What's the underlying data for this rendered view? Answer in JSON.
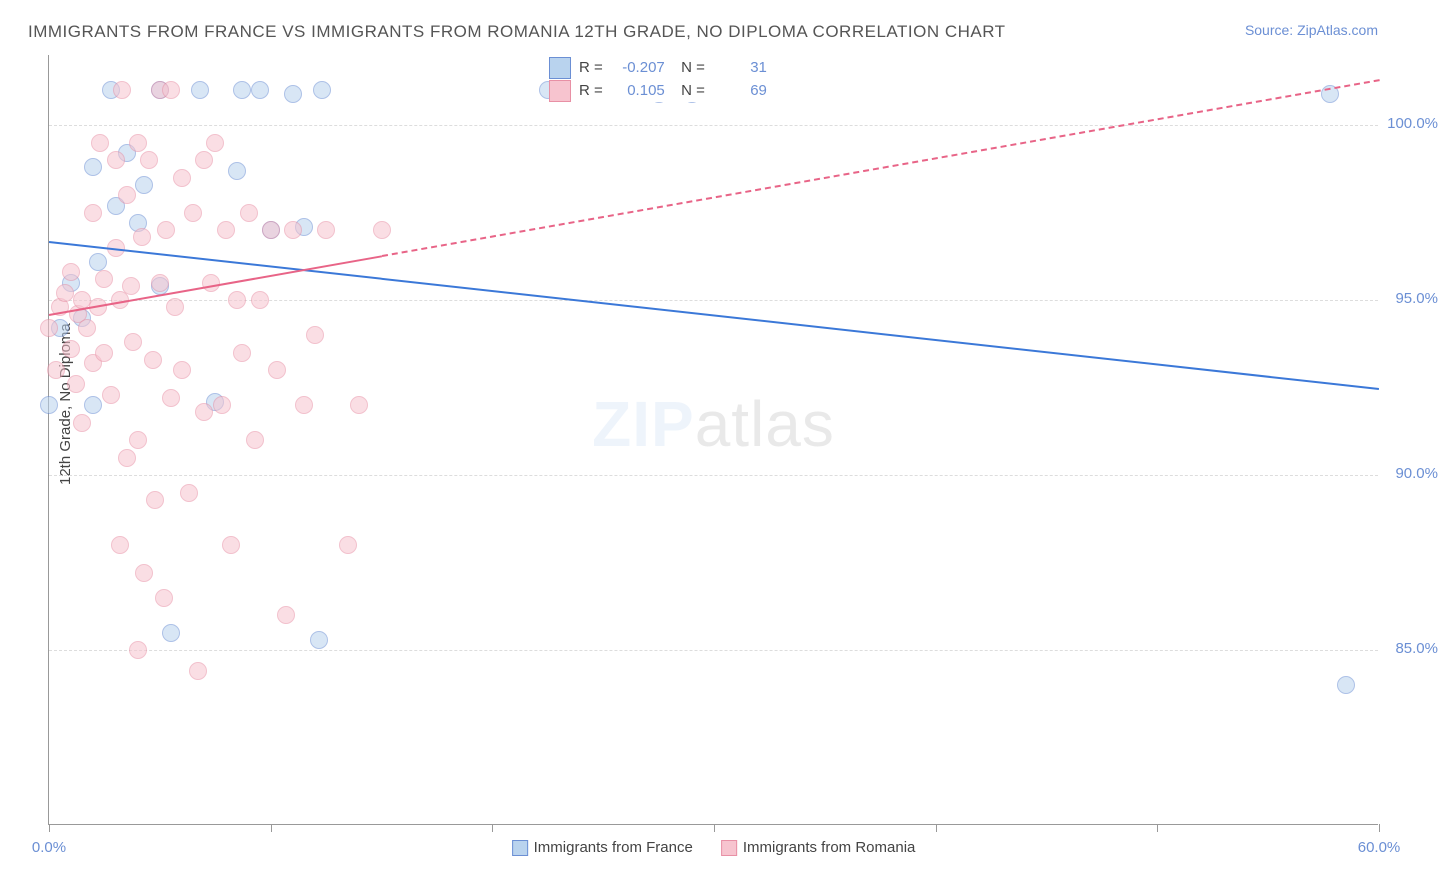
{
  "title": "IMMIGRANTS FROM FRANCE VS IMMIGRANTS FROM ROMANIA 12TH GRADE, NO DIPLOMA CORRELATION CHART",
  "source": "Source: ZipAtlas.com",
  "ylabel": "12th Grade, No Diploma",
  "watermark_bold": "ZIP",
  "watermark_light": "atlas",
  "chart": {
    "type": "scatter",
    "xlim": [
      0,
      60
    ],
    "ylim": [
      80,
      102
    ],
    "x_ticks": [
      0,
      10,
      20,
      30,
      40,
      50,
      60
    ],
    "x_tick_labels": {
      "0": "0.0%",
      "60": "60.0%"
    },
    "y_ticks": [
      85,
      90,
      95,
      100
    ],
    "y_tick_labels": {
      "85": "85.0%",
      "90": "90.0%",
      "95": "95.0%",
      "100": "100.0%"
    },
    "background_color": "#ffffff",
    "grid_color": "#dddddd",
    "series": [
      {
        "name": "Immigrants from France",
        "fill": "#b9d3ee",
        "stroke": "#6b8fd4",
        "stroke_width": 1.5,
        "fill_opacity": 0.55,
        "marker_r": 9,
        "R": "-0.207",
        "N": "31",
        "trend": {
          "x1": 0,
          "y1": 96.7,
          "x2": 60,
          "y2": 92.5,
          "color": "#3b78d8",
          "solid_until_x": 60
        },
        "points": [
          [
            0.0,
            92.0
          ],
          [
            2.8,
            101.0
          ],
          [
            2.0,
            98.8
          ],
          [
            3.0,
            97.7
          ],
          [
            3.5,
            99.2
          ],
          [
            4.0,
            97.2
          ],
          [
            4.3,
            98.3
          ],
          [
            5.0,
            95.4
          ],
          [
            5.0,
            101.0
          ],
          [
            6.8,
            101.0
          ],
          [
            8.5,
            98.7
          ],
          [
            8.7,
            101.0
          ],
          [
            9.5,
            101.0
          ],
          [
            10.0,
            97.0
          ],
          [
            11.0,
            100.9
          ],
          [
            12.3,
            101.0
          ],
          [
            11.5,
            97.1
          ],
          [
            7.5,
            92.1
          ],
          [
            12.2,
            85.3
          ],
          [
            5.5,
            85.5
          ],
          [
            22.5,
            101.0
          ],
          [
            23.5,
            101.0
          ],
          [
            27.5,
            100.9
          ],
          [
            29.0,
            100.9
          ],
          [
            57.8,
            100.9
          ],
          [
            58.5,
            84.0
          ],
          [
            0.5,
            94.2
          ],
          [
            1.0,
            95.5
          ],
          [
            1.5,
            94.5
          ],
          [
            2.2,
            96.1
          ],
          [
            2.0,
            92.0
          ]
        ]
      },
      {
        "name": "Immigrants from Romania",
        "fill": "#f7c4cf",
        "stroke": "#e890a5",
        "stroke_width": 1.5,
        "fill_opacity": 0.55,
        "marker_r": 9,
        "R": "0.105",
        "N": "69",
        "trend": {
          "x1": 0,
          "y1": 94.6,
          "x2": 60,
          "y2": 101.3,
          "color": "#e86487",
          "solid_until_x": 15
        },
        "points": [
          [
            0.0,
            94.2
          ],
          [
            0.3,
            93.0
          ],
          [
            0.5,
            94.8
          ],
          [
            0.7,
            95.2
          ],
          [
            1.0,
            93.6
          ],
          [
            1.0,
            95.8
          ],
          [
            1.2,
            92.6
          ],
          [
            1.3,
            94.6
          ],
          [
            1.5,
            95.0
          ],
          [
            1.5,
            91.5
          ],
          [
            1.7,
            94.2
          ],
          [
            2.0,
            97.5
          ],
          [
            2.0,
            93.2
          ],
          [
            2.2,
            94.8
          ],
          [
            2.3,
            99.5
          ],
          [
            2.5,
            93.5
          ],
          [
            2.5,
            95.6
          ],
          [
            2.8,
            92.3
          ],
          [
            3.0,
            96.5
          ],
          [
            3.0,
            99.0
          ],
          [
            3.2,
            95.0
          ],
          [
            3.3,
            101.0
          ],
          [
            3.5,
            90.5
          ],
          [
            3.5,
            98.0
          ],
          [
            3.7,
            95.4
          ],
          [
            3.8,
            93.8
          ],
          [
            4.0,
            99.5
          ],
          [
            4.0,
            91.0
          ],
          [
            4.2,
            96.8
          ],
          [
            4.3,
            87.2
          ],
          [
            4.5,
            99.0
          ],
          [
            4.7,
            93.3
          ],
          [
            4.8,
            89.3
          ],
          [
            5.0,
            101.0
          ],
          [
            5.0,
            95.5
          ],
          [
            5.2,
            86.5
          ],
          [
            5.3,
            97.0
          ],
          [
            5.5,
            92.2
          ],
          [
            5.7,
            94.8
          ],
          [
            6.0,
            98.5
          ],
          [
            6.0,
            93.0
          ],
          [
            6.3,
            89.5
          ],
          [
            6.5,
            97.5
          ],
          [
            6.7,
            84.4
          ],
          [
            7.0,
            99.0
          ],
          [
            7.0,
            91.8
          ],
          [
            7.3,
            95.5
          ],
          [
            7.5,
            99.5
          ],
          [
            7.8,
            92.0
          ],
          [
            8.0,
            97.0
          ],
          [
            8.2,
            88.0
          ],
          [
            8.5,
            95.0
          ],
          [
            8.7,
            93.5
          ],
          [
            9.0,
            97.5
          ],
          [
            9.3,
            91.0
          ],
          [
            9.5,
            95.0
          ],
          [
            10.0,
            97.0
          ],
          [
            10.3,
            93.0
          ],
          [
            10.7,
            86.0
          ],
          [
            11.0,
            97.0
          ],
          [
            11.5,
            92.0
          ],
          [
            12.0,
            94.0
          ],
          [
            12.5,
            97.0
          ],
          [
            13.5,
            88.0
          ],
          [
            14.0,
            92.0
          ],
          [
            15.0,
            97.0
          ],
          [
            5.5,
            101.0
          ],
          [
            4.0,
            85.0
          ],
          [
            3.2,
            88.0
          ]
        ]
      }
    ]
  },
  "legend_bottom": [
    {
      "label": "Immigrants from France",
      "fill": "#b9d3ee",
      "stroke": "#6b8fd4"
    },
    {
      "label": "Immigrants from Romania",
      "fill": "#f7c4cf",
      "stroke": "#e890a5"
    }
  ]
}
